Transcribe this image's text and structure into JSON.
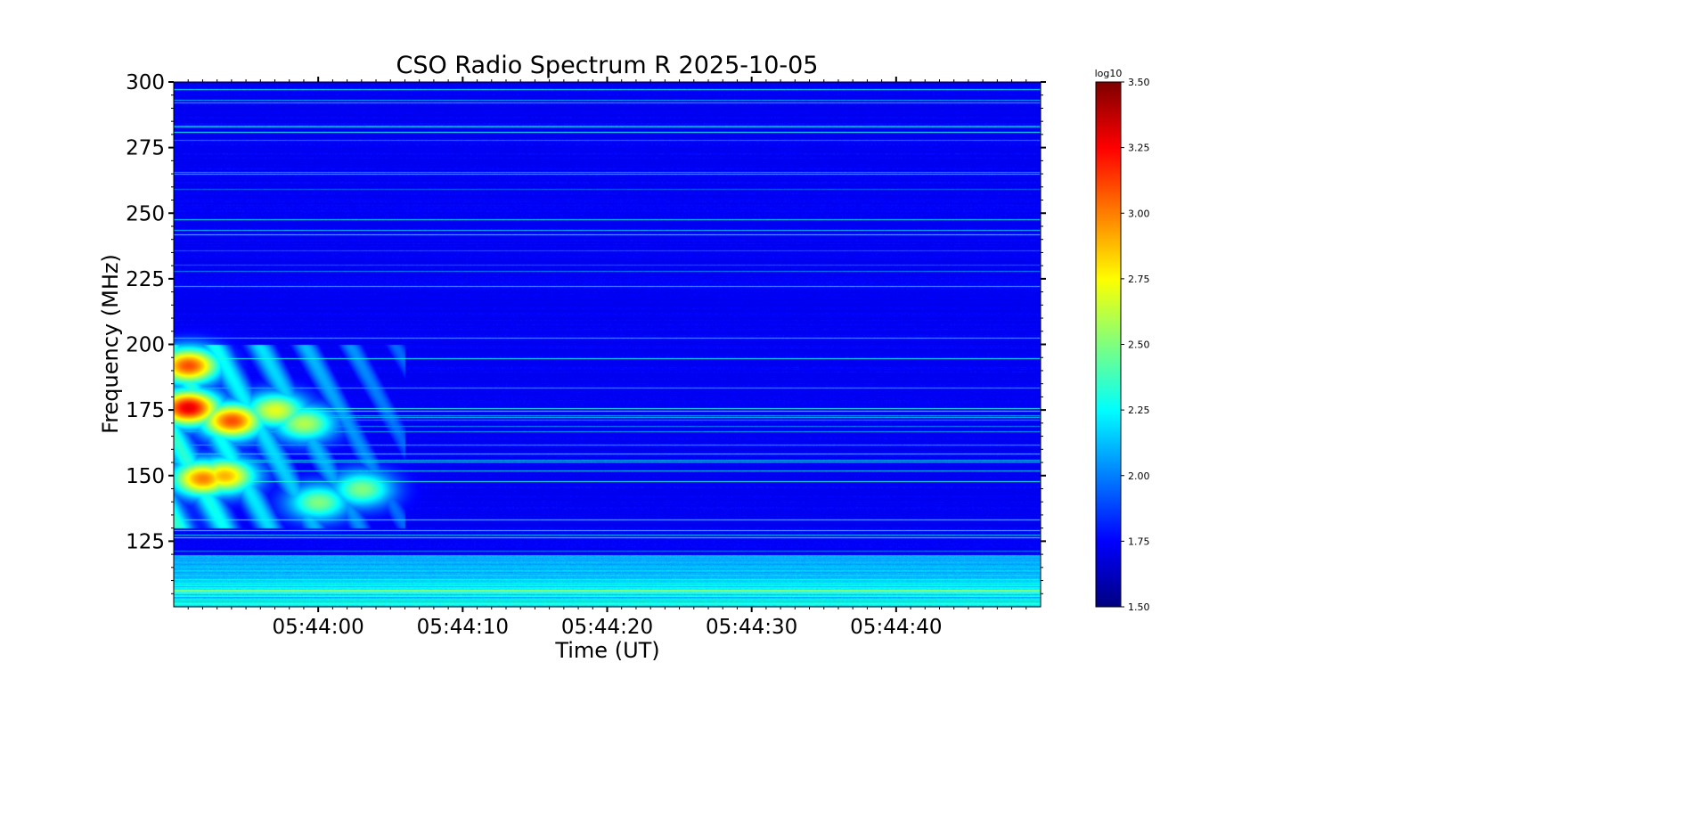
{
  "chart_data": {
    "type": "heatmap",
    "title": "CSO Radio Spectrum R 2025-10-05",
    "xlabel": "Time (UT)",
    "ylabel": "Frequency (MHz)",
    "xlim": [
      "05:43:50",
      "05:44:50"
    ],
    "ylim": [
      100,
      300
    ],
    "xticks": [
      "05:44:00",
      "05:44:10",
      "05:44:20",
      "05:44:30",
      "05:44:40"
    ],
    "xtick_seconds": [
      10,
      20,
      30,
      40,
      50
    ],
    "yticks": [
      125,
      150,
      175,
      200,
      225,
      250,
      275,
      300
    ],
    "colorbar": {
      "label": "log10",
      "range": [
        1.5,
        3.5
      ],
      "ticks": [
        "1.50",
        "1.75",
        "2.00",
        "2.25",
        "2.50",
        "2.75",
        "3.00",
        "3.25",
        "3.50"
      ],
      "colormap": "jet"
    },
    "background_level": 1.72,
    "bursts": [
      {
        "t": 1,
        "f": 192,
        "level": 3.1
      },
      {
        "t": 1,
        "f": 176,
        "level": 3.3
      },
      {
        "t": 4,
        "f": 171,
        "level": 3.1
      },
      {
        "t": 2,
        "f": 149,
        "level": 3.0
      },
      {
        "t": 3.5,
        "f": 150,
        "level": 2.9
      },
      {
        "t": 7,
        "f": 175,
        "level": 2.7
      },
      {
        "t": 9,
        "f": 170,
        "level": 2.6
      },
      {
        "t": 10,
        "f": 140,
        "level": 2.5
      },
      {
        "t": 13,
        "f": 145,
        "level": 2.5
      }
    ]
  }
}
